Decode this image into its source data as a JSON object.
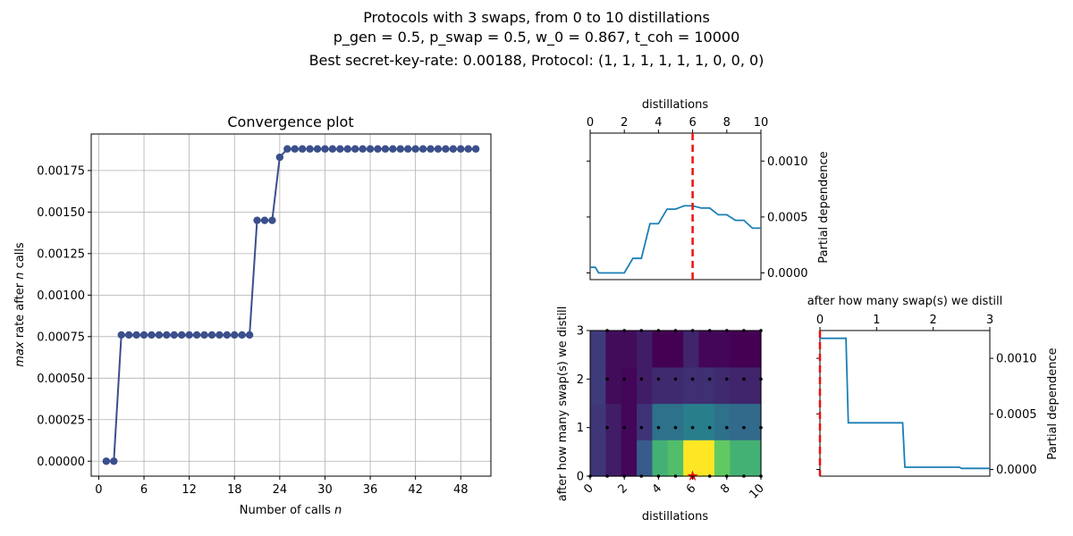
{
  "header": {
    "line1": "Protocols with 3 swaps, from 0 to 10 distillations",
    "line2": "p_gen = 0.5, p_swap = 0.5, w_0 = 0.867, t_coh = 10000",
    "line3": "Best secret-key-rate: 0.00188, Protocol: (1, 1, 1, 1, 1, 1, 0, 0, 0)"
  },
  "chart_data": [
    {
      "id": "convergence",
      "type": "line",
      "title": "Convergence plot",
      "xlabel": "Number of calls n",
      "ylabel": "max rate after n calls",
      "xlim": [
        -1,
        52
      ],
      "ylim": [
        -9e-05,
        0.00197
      ],
      "xticks": [
        "0",
        "6",
        "12",
        "18",
        "24",
        "30",
        "36",
        "42",
        "48"
      ],
      "yticks": [
        "0.00000",
        "0.00025",
        "0.00050",
        "0.00075",
        "0.00100",
        "0.00125",
        "0.00150",
        "0.00175"
      ],
      "grid": true,
      "color": "#3b4f8c",
      "x": [
        1,
        2,
        3,
        4,
        5,
        6,
        7,
        8,
        9,
        10,
        11,
        12,
        13,
        14,
        15,
        16,
        17,
        18,
        19,
        20,
        21,
        22,
        23,
        24,
        25,
        26,
        27,
        28,
        29,
        30,
        31,
        32,
        33,
        34,
        35,
        36,
        37,
        38,
        39,
        40,
        41,
        42,
        43,
        44,
        45,
        46,
        47,
        48,
        49,
        50
      ],
      "values": [
        0,
        0,
        0.00076,
        0.00076,
        0.00076,
        0.00076,
        0.00076,
        0.00076,
        0.00076,
        0.00076,
        0.00076,
        0.00076,
        0.00076,
        0.00076,
        0.00076,
        0.00076,
        0.00076,
        0.00076,
        0.00076,
        0.00076,
        0.00145,
        0.00145,
        0.00145,
        0.00183,
        0.00188,
        0.00188,
        0.00188,
        0.00188,
        0.00188,
        0.00188,
        0.00188,
        0.00188,
        0.00188,
        0.00188,
        0.00188,
        0.00188,
        0.00188,
        0.00188,
        0.00188,
        0.00188,
        0.00188,
        0.00188,
        0.00188,
        0.00188,
        0.00188,
        0.00188,
        0.00188,
        0.00188,
        0.00188,
        0.00188
      ]
    },
    {
      "id": "pd-distillations",
      "type": "line",
      "xlabel": "distillations",
      "ylabel": "Partial dependence",
      "xlim": [
        0,
        10
      ],
      "ylim": [
        -6e-05,
        0.00125
      ],
      "xticks": [
        "0",
        "2",
        "4",
        "6",
        "8",
        "10"
      ],
      "yticks": [
        "0.0000",
        "0.0005",
        "0.0010"
      ],
      "marker_x": 6,
      "color": "#1a7fb5",
      "x": [
        0,
        0.3,
        0.5,
        1,
        1.5,
        2,
        2.5,
        2.7,
        3,
        3.5,
        3.7,
        4,
        4.5,
        5,
        5.5,
        6,
        6.5,
        7,
        7.5,
        8,
        8.5,
        9,
        9.5,
        10
      ],
      "values": [
        5e-05,
        5e-05,
        0,
        0,
        0,
        0,
        0.00013,
        0.00013,
        0.00013,
        0.00044,
        0.00044,
        0.00044,
        0.00057,
        0.00057,
        0.0006,
        0.0006,
        0.00058,
        0.00058,
        0.00052,
        0.00052,
        0.00047,
        0.00047,
        0.0004,
        0.0004
      ]
    },
    {
      "id": "pd-swaps",
      "type": "line",
      "xlabel": "after how many swap(s) we distill",
      "ylabel": "Partial dependence",
      "xlim": [
        0,
        3
      ],
      "ylim": [
        -6e-05,
        0.00125
      ],
      "xticks": [
        "0",
        "1",
        "2",
        "3"
      ],
      "yticks": [
        "0.0000",
        "0.0005",
        "0.0010"
      ],
      "marker_x": 0,
      "color": "#1a7fb5",
      "x": [
        0,
        0.46,
        0.5,
        1.46,
        1.5,
        2.46,
        2.5,
        3
      ],
      "values": [
        0.00118,
        0.00118,
        0.00042,
        0.00042,
        2e-05,
        2e-05,
        1e-05,
        1e-05
      ]
    },
    {
      "id": "heatmap",
      "type": "heatmap",
      "xlabel": "distillations",
      "ylabel": "after how many swap(s) we distill",
      "xlim": [
        0,
        10
      ],
      "ylim": [
        0,
        3
      ],
      "xticks": [
        "0",
        "2",
        "4",
        "6",
        "8",
        "10"
      ],
      "yticks": [
        "0",
        "1",
        "2",
        "3"
      ],
      "best_point": [
        6,
        0
      ],
      "rows_y": [
        0,
        1,
        2,
        3
      ],
      "cols_x": [
        0,
        1,
        2,
        3,
        4,
        5,
        6,
        7,
        8,
        9,
        10
      ],
      "values": [
        [
          0.00032,
          0.00018,
          5e-05,
          0.00055,
          0.0012,
          0.0013,
          0.00185,
          0.00185,
          0.0014,
          0.0012,
          0.0012
        ],
        [
          0.00032,
          0.00018,
          5e-05,
          0.0003,
          0.0007,
          0.0007,
          0.0008,
          0.0008,
          0.0007,
          0.00065,
          0.00065
        ],
        [
          0.00035,
          8e-05,
          5e-05,
          0.00018,
          0.00025,
          0.00025,
          0.00028,
          0.00028,
          0.00025,
          0.00022,
          0.00022
        ],
        [
          0.00035,
          8e-05,
          8e-05,
          0.00018,
          2e-05,
          2e-05,
          0.00022,
          5e-05,
          5e-05,
          2e-05,
          2e-05
        ]
      ],
      "samples": [
        [
          0,
          0
        ],
        [
          1,
          0
        ],
        [
          2,
          0
        ],
        [
          3,
          0
        ],
        [
          4,
          0
        ],
        [
          5,
          0
        ],
        [
          6,
          0
        ],
        [
          7,
          0
        ],
        [
          8,
          0
        ],
        [
          9,
          0
        ],
        [
          10,
          0
        ],
        [
          1,
          1
        ],
        [
          2,
          1
        ],
        [
          3,
          1
        ],
        [
          4,
          1
        ],
        [
          5,
          1
        ],
        [
          6,
          1
        ],
        [
          7,
          1
        ],
        [
          8,
          1
        ],
        [
          9,
          1
        ],
        [
          10,
          1
        ],
        [
          1,
          2
        ],
        [
          2,
          2
        ],
        [
          3,
          2
        ],
        [
          4,
          2
        ],
        [
          5,
          2
        ],
        [
          6,
          2
        ],
        [
          7,
          2
        ],
        [
          8,
          2
        ],
        [
          9,
          2
        ],
        [
          10,
          2
        ],
        [
          1,
          3
        ],
        [
          2,
          3
        ],
        [
          3,
          3
        ],
        [
          4,
          3
        ],
        [
          5,
          3
        ],
        [
          6,
          3
        ],
        [
          7,
          3
        ],
        [
          8,
          3
        ],
        [
          9,
          3
        ],
        [
          10,
          3
        ]
      ]
    }
  ]
}
